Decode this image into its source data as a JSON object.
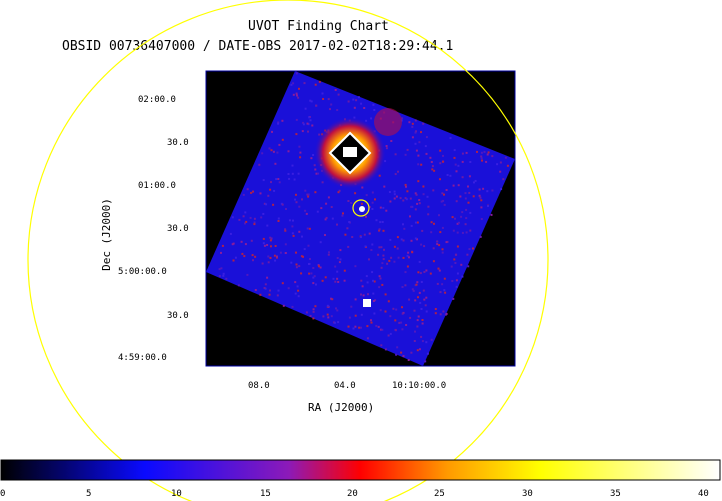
{
  "title": "UVOT Finding Chart",
  "subtitle": "OBSID 00736407000 / DATE-OBS 2017-02-02T18:29:44.1",
  "colors": {
    "circle": "#ffff00",
    "frame": "#0000a0",
    "background": "#000000",
    "field": "#1a10d8"
  },
  "axes": {
    "xlabel": "RA (J2000)",
    "ylabel": "Dec (J2000)",
    "dec_ticks": [
      "02:00.0",
      "30.0",
      "01:00.0",
      "30.0",
      "5:00:00.0",
      "30.0",
      "4:59:00.0"
    ],
    "ra_ticks": [
      "08.0",
      "04.0",
      "10:10:00.0"
    ]
  },
  "colorbar": {
    "colormap": "heat",
    "min": 0,
    "max": 40,
    "ticks": [
      "0",
      "5",
      "10",
      "15",
      "20",
      "25",
      "30",
      "35",
      "40"
    ]
  }
}
